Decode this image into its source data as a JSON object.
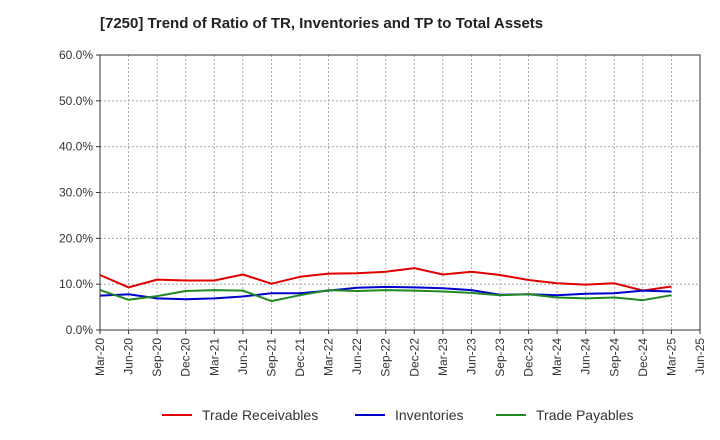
{
  "chart_data": {
    "type": "line",
    "title": "[7250]  Trend of Ratio of TR, Inventories and TP to Total Assets",
    "xlabel": "",
    "ylabel": "",
    "categories": [
      "Mar-20",
      "Jun-20",
      "Sep-20",
      "Dec-20",
      "Mar-21",
      "Jun-21",
      "Sep-21",
      "Dec-21",
      "Mar-22",
      "Jun-22",
      "Sep-22",
      "Dec-22",
      "Mar-23",
      "Jun-23",
      "Sep-23",
      "Dec-23",
      "Mar-24",
      "Jun-24",
      "Sep-24",
      "Dec-24",
      "Mar-25",
      "Jun-25"
    ],
    "ylim": [
      0,
      60
    ],
    "yticks": [
      "0.0%",
      "10.0%",
      "20.0%",
      "30.0%",
      "40.0%",
      "50.0%",
      "60.0%"
    ],
    "grid": true,
    "legend_position": "bottom",
    "series": [
      {
        "name": "Trade Receivables",
        "color": "#e00000",
        "values": [
          12.0,
          9.3,
          11.0,
          10.8,
          10.8,
          12.1,
          10.1,
          11.6,
          12.3,
          12.4,
          12.7,
          13.5,
          12.1,
          12.7,
          12.0,
          10.9,
          10.2,
          9.9,
          10.2,
          8.6,
          9.5,
          null
        ]
      },
      {
        "name": "Inventories",
        "color": "#0000cc",
        "values": [
          7.5,
          7.8,
          6.9,
          6.7,
          6.9,
          7.3,
          8.0,
          8.0,
          8.6,
          9.2,
          9.4,
          9.3,
          9.1,
          8.7,
          7.7,
          7.8,
          7.6,
          7.9,
          8.0,
          8.6,
          8.4,
          null
        ]
      },
      {
        "name": "Trade Payables",
        "color": "#228822",
        "values": [
          8.7,
          6.6,
          7.4,
          8.5,
          8.7,
          8.6,
          6.3,
          7.6,
          8.7,
          8.5,
          8.7,
          8.6,
          8.4,
          8.1,
          7.6,
          7.8,
          7.1,
          6.9,
          7.1,
          6.5,
          7.6,
          null
        ]
      }
    ]
  }
}
